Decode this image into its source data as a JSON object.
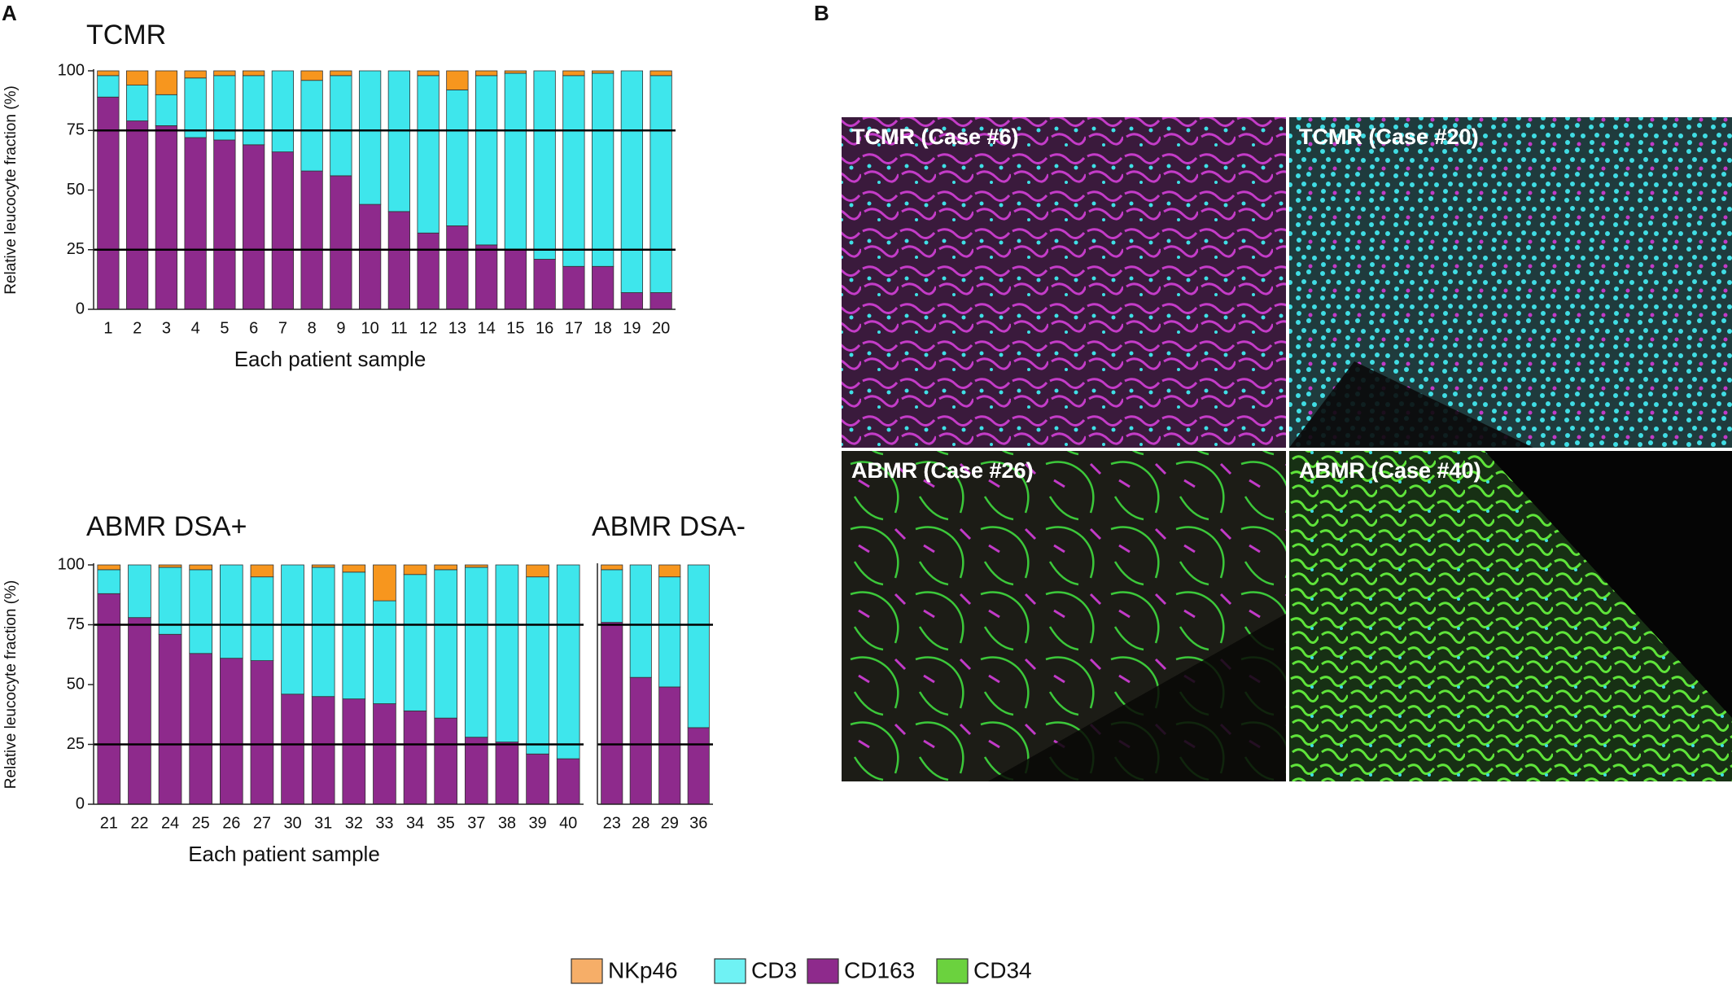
{
  "panel_labels": [
    "A",
    "B"
  ],
  "chart_data": [
    {
      "type": "bar",
      "stacked": true,
      "title": "TCMR",
      "ylabel": "Relative leucocyte fraction (%)",
      "xlabel": "Each patient sample",
      "categories": [
        "1",
        "2",
        "3",
        "4",
        "5",
        "6",
        "7",
        "8",
        "9",
        "10",
        "11",
        "12",
        "13",
        "14",
        "15",
        "16",
        "17",
        "18",
        "19",
        "20"
      ],
      "series": [
        {
          "color": "#8e2a8c",
          "values": [
            89,
            79,
            77,
            72,
            71,
            69,
            66,
            58,
            56,
            44,
            41,
            32,
            35,
            27,
            25,
            21,
            18,
            18,
            7,
            7
          ]
        },
        {
          "color": "#3ee6ec",
          "values": [
            9,
            15,
            13,
            25,
            27,
            29,
            34,
            38,
            42,
            56,
            59,
            66,
            57,
            71,
            74,
            79,
            80,
            81,
            93,
            91
          ]
        },
        {
          "color": "#f7961e",
          "values": [
            2,
            6,
            10,
            3,
            2,
            2,
            0,
            4,
            2,
            0,
            0,
            2,
            8,
            2,
            1,
            0,
            2,
            1,
            0,
            2
          ]
        }
      ],
      "ylim": [
        0,
        100
      ],
      "yticks": [
        0,
        25,
        50,
        75,
        100
      ],
      "hlines": [
        25,
        75
      ]
    },
    {
      "type": "bar",
      "stacked": true,
      "title": "ABMR DSA+",
      "ylabel": "Relative leucocyte fraction (%)",
      "xlabel": "Each patient sample",
      "categories": [
        "21",
        "22",
        "24",
        "25",
        "26",
        "27",
        "30",
        "31",
        "32",
        "33",
        "34",
        "35",
        "37",
        "38",
        "39",
        "40"
      ],
      "series": [
        {
          "color": "#8e2a8c",
          "values": [
            88,
            78,
            71,
            63,
            61,
            60,
            46,
            45,
            44,
            42,
            39,
            36,
            28,
            26,
            21,
            19
          ]
        },
        {
          "color": "#3ee6ec",
          "values": [
            10,
            22,
            28,
            35,
            39,
            35,
            54,
            54,
            53,
            43,
            57,
            62,
            71,
            74,
            74,
            81
          ]
        },
        {
          "color": "#f7961e",
          "values": [
            2,
            0,
            1,
            2,
            0,
            5,
            0,
            1,
            3,
            15,
            4,
            2,
            1,
            0,
            5,
            0
          ]
        }
      ],
      "ylim": [
        0,
        100
      ],
      "yticks": [
        0,
        25,
        50,
        75,
        100
      ],
      "hlines": [
        25,
        75
      ]
    },
    {
      "type": "bar",
      "stacked": true,
      "title": "ABMR DSA-",
      "categories": [
        "23",
        "28",
        "29",
        "36"
      ],
      "series": [
        {
          "color": "#8e2a8c",
          "values": [
            76,
            53,
            49,
            32
          ]
        },
        {
          "color": "#3ee6ec",
          "values": [
            22,
            47,
            46,
            68
          ]
        },
        {
          "color": "#f7961e",
          "values": [
            2,
            0,
            5,
            0
          ]
        }
      ],
      "ylim": [
        0,
        100
      ],
      "hlines": [
        25,
        75
      ]
    }
  ],
  "images": [
    {
      "label": "TCMR (Case #6)"
    },
    {
      "label": "TCMR (Case #20)"
    },
    {
      "label": "ABMR (Case #26)"
    },
    {
      "label": "ABMR (Case #40)"
    }
  ],
  "legend": [
    {
      "name": "NKp46",
      "color": "#f6ae68"
    },
    {
      "name": "CD3",
      "color": "#6ff2f4"
    },
    {
      "name": "CD163",
      "color": "#8e2a8c"
    },
    {
      "name": "CD34",
      "color": "#6bd23e"
    }
  ]
}
